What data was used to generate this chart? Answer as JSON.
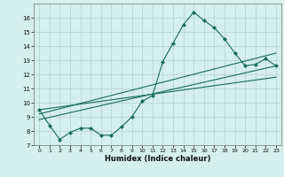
{
  "xlabel": "Humidex (Indice chaleur)",
  "bg_color": "#d4efec",
  "grid_color": "#b8d8d4",
  "line_color": "#1a6b5a",
  "xlim": [
    -0.5,
    23.5
  ],
  "ylim": [
    7,
    17
  ],
  "yticks": [
    7,
    8,
    9,
    10,
    11,
    12,
    13,
    14,
    15,
    16
  ],
  "xticks": [
    0,
    1,
    2,
    3,
    4,
    5,
    6,
    7,
    8,
    9,
    10,
    11,
    12,
    13,
    14,
    15,
    16,
    17,
    18,
    19,
    20,
    21,
    22,
    23
  ],
  "series_main": {
    "x": [
      0,
      1,
      2,
      3,
      4,
      5,
      6,
      7,
      8,
      9,
      10,
      11,
      12,
      13,
      14,
      15,
      16,
      17,
      18,
      19,
      20,
      21,
      22,
      23
    ],
    "y": [
      9.5,
      8.4,
      7.4,
      7.9,
      8.2,
      8.2,
      7.7,
      7.7,
      8.3,
      9.0,
      10.1,
      10.5,
      12.9,
      14.2,
      15.5,
      16.4,
      15.8,
      15.3,
      14.5,
      13.5,
      12.6,
      12.7,
      13.1,
      12.6
    ]
  },
  "series_lines": [
    {
      "x": [
        0,
        23
      ],
      "y": [
        8.8,
        12.6
      ]
    },
    {
      "x": [
        0,
        23
      ],
      "y": [
        9.2,
        13.5
      ]
    },
    {
      "x": [
        0,
        23
      ],
      "y": [
        9.5,
        11.8
      ]
    }
  ]
}
